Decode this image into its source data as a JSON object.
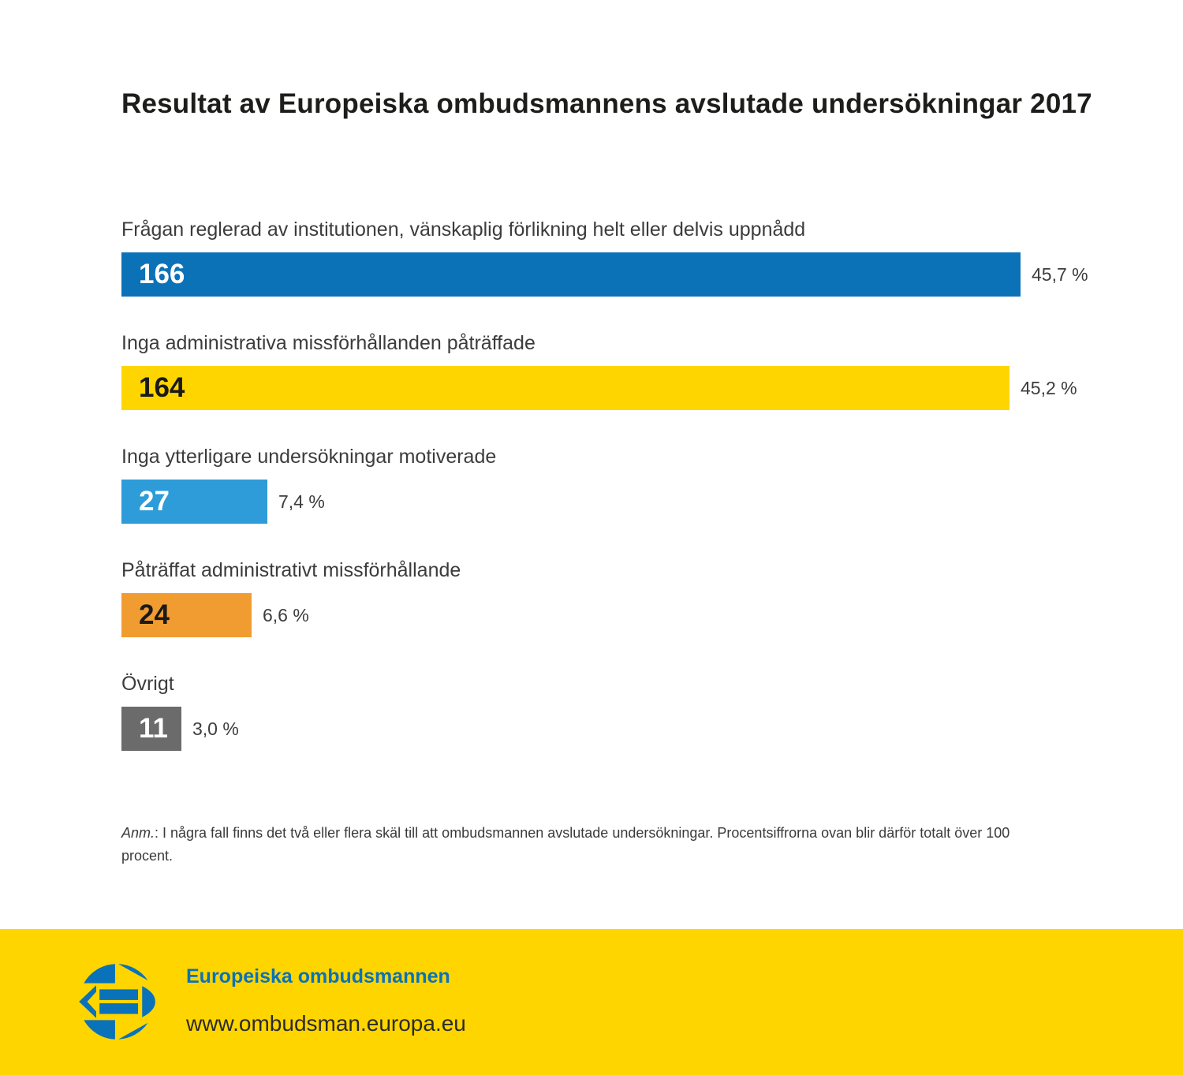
{
  "title": "Resultat av Europeiska ombudsmannens avslutade undersökningar 2017",
  "chart_data": {
    "type": "bar",
    "orientation": "horizontal",
    "title": "Resultat av Europeiska ombudsmannens avslutade undersökningar 2017",
    "categories": [
      "Frågan reglerad av institutionen, vänskaplig förlikning helt eller delvis uppnådd",
      "Inga administrativa missförhållanden påträffade",
      "Inga ytterligare undersökningar motiverade",
      "Påträffat administrativt missförhållande",
      "Övrigt"
    ],
    "values": [
      166,
      164,
      27,
      24,
      11
    ],
    "value_labels": [
      "166",
      "164",
      "27",
      "24",
      "11"
    ],
    "percents": [
      45.7,
      45.2,
      7.4,
      6.6,
      3.0
    ],
    "percent_labels": [
      "45,7 %",
      "45,2 %",
      "7,4 %",
      "6,6 %",
      "3,0 %"
    ],
    "colors": [
      "#0c72b8",
      "#ffd500",
      "#2d9cd8",
      "#f19c31",
      "#6b6b6b"
    ],
    "value_text_colors": [
      "#ffffff",
      "#1a1a1a",
      "#ffffff",
      "#1a1a1a",
      "#ffffff"
    ],
    "xlim": [
      0,
      166
    ],
    "grid": false,
    "legend": false,
    "value_label_position": "inside-left",
    "percent_label_position": "right-of-bar"
  },
  "note": {
    "prefix": "Anm.",
    "text": ": I några fall finns det två eller flera skäl till att ombudsmannen avslutade undersökningar. Procentsiffrorna ovan blir därför totalt över 100 procent."
  },
  "footer": {
    "org": "Europeiska ombudsmannen",
    "url": "www.ombudsman.europa.eu",
    "background": "#ffd500",
    "accent": "#0a72b8",
    "logo_icon": "european-ombudsman-circle-logo"
  }
}
